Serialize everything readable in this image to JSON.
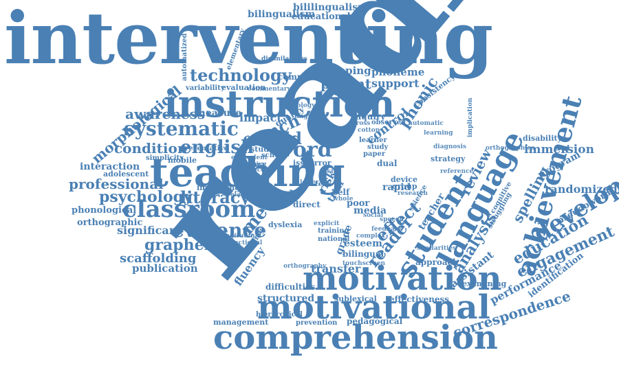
{
  "cloud": {
    "color": "#4a80b4",
    "words": {
      "interventing": "interventing",
      "reading": "reading",
      "instruction": "instruction",
      "teaching": "teaching",
      "motivation": "motivation",
      "motivational": "motivational",
      "comprehension": "comprehension",
      "classroom": "classroom",
      "language": "language",
      "student": "student",
      "achievement": "achievement",
      "development": "development",
      "systematic": "systematic",
      "english": "english",
      "word": "word",
      "literacy": "literacy",
      "evidence": "evidence",
      "grapheme": "grapheme",
      "psychology": "psychology",
      "condition": "condition",
      "professional": "professional",
      "technology": "technology",
      "awareness": "awareness",
      "french": "french",
      "child": "child",
      "parent": "parent",
      "support": "support",
      "phonic": "phonic",
      "control": "control",
      "effect": "effect",
      "reader": "reader",
      "analysis": "analysis",
      "education": "education",
      "engagement": "engagement",
      "spelling": "spelling",
      "review": "review",
      "immersion": "immersion",
      "randomized": "randomized",
      "program": "program",
      "pseudoword": "pseudoword",
      "performance": "performance",
      "identification": "identification",
      "correspondence": "correspondence",
      "assistant": "assistant",
      "examining": "examining",
      "approach": "approach",
      "transfer": "transfer",
      "fluency": "fluency",
      "structured": "structured",
      "effectiveness": "effectiveness",
      "sublexical": "sublexical",
      "difficulties": "difficulties",
      "scaffolding": "scaffolding",
      "publication": "publication",
      "significant": "significant",
      "orthographic": "orthographic",
      "phonological": "phonological",
      "adolescent": "adolescent",
      "interaction": "interaction",
      "morphological": "morphological",
      "mapping": "mapping",
      "phoneme": "phoneme",
      "computer": "computer",
      "impact": "impact",
      "measure": "measure",
      "quality": "quality",
      "meta": "meta",
      "result": "result",
      "esteem": "esteem",
      "bilingual": "bilingual",
      "management": "management",
      "hierarchical": "hierarchical",
      "prevention": "prevention",
      "pedagogical": "pedagogical",
      "grade": "grade",
      "risk": "risk",
      "trial": "trial",
      "rapid": "rapid",
      "device": "device",
      "group": "group",
      "media": "media",
      "poor": "poor",
      "direct": "direct",
      "dyslexia": "dyslexia",
      "national": "national",
      "training": "training",
      "naming": "naming",
      "efficacy": "efficacy",
      "studies": "studies",
      "school": "school",
      "issue": "issue",
      "error": "error",
      "mobile": "mobile",
      "simplicity": "simplicity",
      "improving": "improving",
      "preventative": "preventative",
      "evaluation": "evaluation",
      "variability": "variability",
      "automatized": "automatized",
      "elementary": "elementary",
      "disimilarities": "disimilarities",
      "bilingualism": "bilingualism",
      "bililingualism": "bililingualism",
      "educational": "educational",
      "morphology": "morphology",
      "inquiry": "inquiry",
      "observed": "observed",
      "learner": "learner",
      "study": "study",
      "paper": "paper",
      "dual": "dual",
      "strategy": "strategy",
      "consistency": "consistency",
      "disability": "disability",
      "implication": "implication",
      "struggling": "struggling",
      "cognitive": "cognitive",
      "teacher": "teacher",
      "science": "science",
      "self": "self",
      "cotton": "cotton",
      "cross": "cross",
      "text": "text",
      "commentary": "commentary",
      "phonology": "phonology",
      "linguistic": "linguistic",
      "automatic": "automatic",
      "learning": "learning",
      "diagnosis": "diagnosis",
      "reference": "reference",
      "orthographies": "orthographies",
      "research": "research",
      "explicit": "explicit",
      "touchscreen": "touchscreen",
      "complex": "complex",
      "similarities": "similarities",
      "feedback": "feedback",
      "longitudinal": "longitudinal",
      "instructional": "instructional",
      "sentence": "sentence",
      "equivalent": "equivalent",
      "effective": "effective",
      "relationship": "relationship",
      "orthography": "orthography",
      "whole": "whole",
      "lower": "lower",
      "skill": "skill",
      "social": "social",
      "speech": "speech"
    }
  }
}
